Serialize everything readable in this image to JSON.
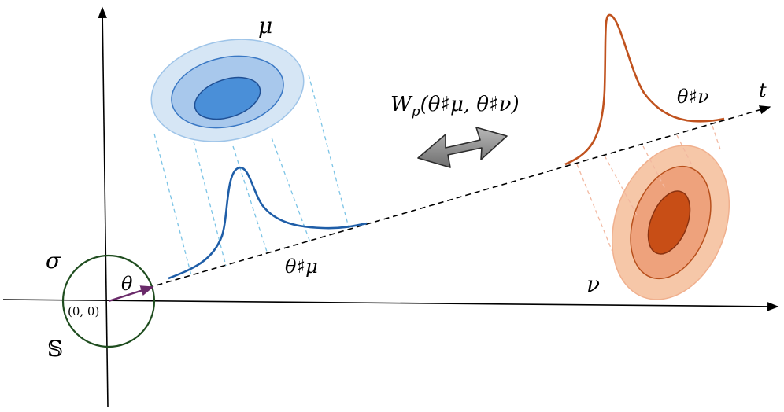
{
  "labels": {
    "mu": "μ",
    "nu": "ν",
    "t": "t",
    "sigma": "σ",
    "theta": "θ",
    "origin": "(0, 0)",
    "sphere": "𝕊",
    "proj_mu": "θ♯μ",
    "proj_nu": "θ♯ν",
    "distance": "W",
    "distance_sub": "p",
    "distance_args": "(θ♯μ, θ♯ν)"
  },
  "colors": {
    "blue_outer": "#d6e6f5",
    "blue_mid": "#a8c8ec",
    "blue_inner": "#4a8fd8",
    "blue_stroke": "#3a78c4",
    "blue_curve": "#1f5ea8",
    "blue_dash": "#7cc4e6",
    "orange_outer": "#f6c7a8",
    "orange_mid": "#eea27c",
    "orange_inner": "#c84e16",
    "orange_stroke": "#a84612",
    "orange_curve": "#c0521e",
    "orange_dash": "#f2b8a0",
    "circle": "#1f4d1f",
    "theta_arrow": "#6a2a6a",
    "double_arrow": "#8a8a8a"
  }
}
